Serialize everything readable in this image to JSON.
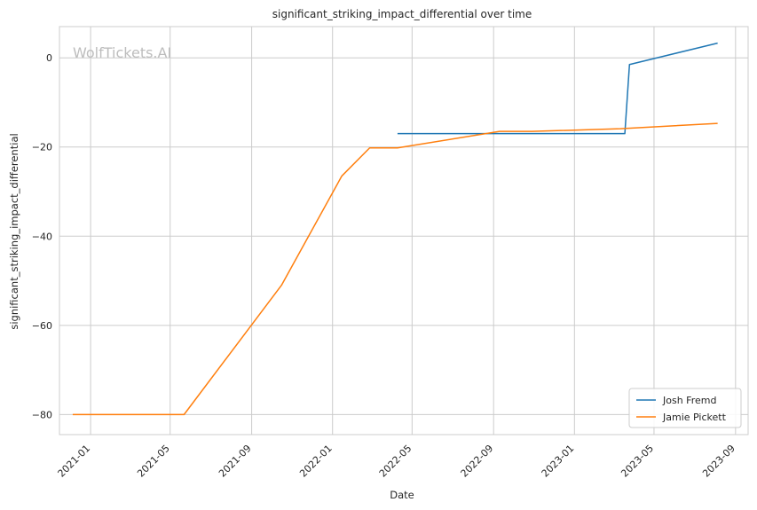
{
  "chart_data": {
    "type": "line",
    "title": "significant_striking_impact_differential over time",
    "xlabel": "Date",
    "ylabel": "significant_striking_impact_differential",
    "watermark": "WolfTickets.AI",
    "xlim": [
      "2020-11-15",
      "2023-09-20"
    ],
    "ylim": [
      -84.5,
      7
    ],
    "x_ticks": [
      "2021-01",
      "2021-05",
      "2021-09",
      "2022-01",
      "2022-05",
      "2022-09",
      "2023-01",
      "2023-05",
      "2023-09"
    ],
    "y_ticks": [
      0,
      -20,
      -40,
      -60,
      -80
    ],
    "grid": true,
    "legend_position": "lower-right",
    "series": [
      {
        "name": "Josh Fremd",
        "color": "#1f77b4",
        "x": [
          "2022-04-09",
          "2023-03-18",
          "2023-03-25",
          "2023-08-05"
        ],
        "y": [
          -17,
          -17,
          -1.5,
          3.3
        ]
      },
      {
        "name": "Jamie Pickett",
        "color": "#ff7f0e",
        "x": [
          "2020-12-05",
          "2021-05-22",
          "2021-10-16",
          "2022-01-15",
          "2022-02-26",
          "2022-04-09",
          "2022-09-10",
          "2022-10-29",
          "2023-03-11",
          "2023-08-05"
        ],
        "y": [
          -80,
          -80,
          -51,
          -26.5,
          -20.2,
          -20.2,
          -16.5,
          -16.5,
          -15.9,
          -14.7
        ]
      }
    ]
  }
}
